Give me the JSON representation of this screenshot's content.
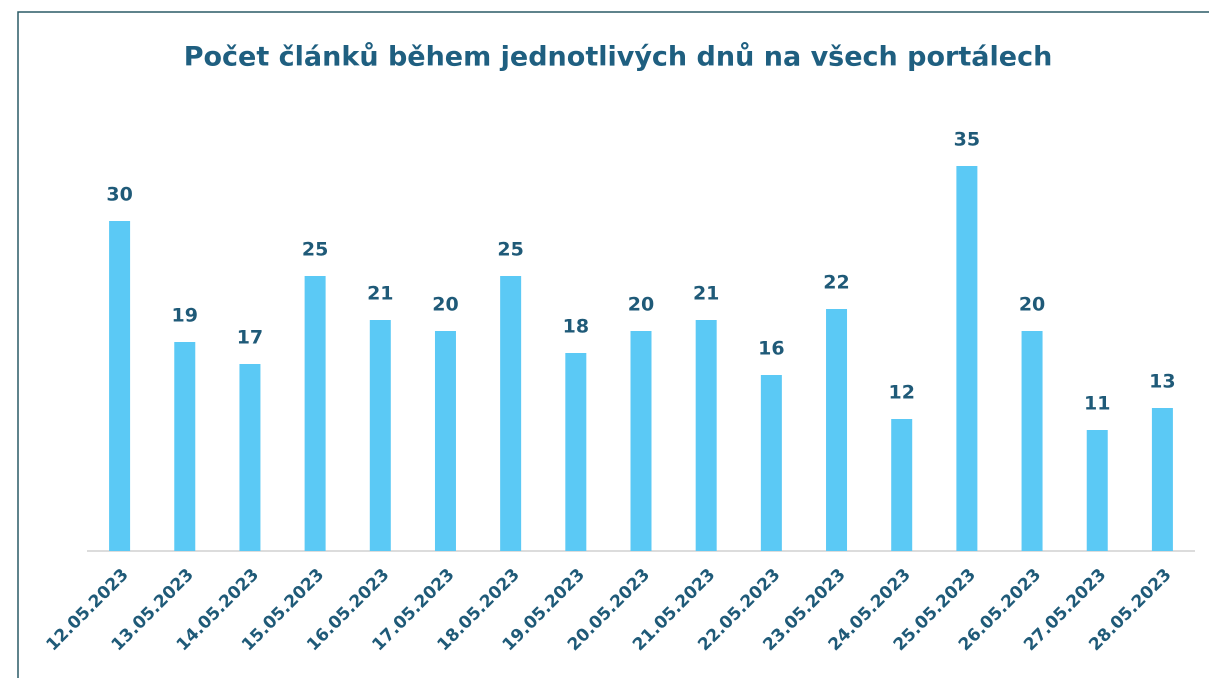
{
  "chart_data": {
    "type": "bar",
    "title": "Počet článků během jednotlivých dnů na všech portálech",
    "categories": [
      "12.05.2023",
      "13.05.2023",
      "14.05.2023",
      "15.05.2023",
      "16.05.2023",
      "17.05.2023",
      "18.05.2023",
      "19.05.2023",
      "20.05.2023",
      "21.05.2023",
      "22.05.2023",
      "23.05.2023",
      "24.05.2023",
      "25.05.2023",
      "26.05.2023",
      "27.05.2023",
      "28.05.2023"
    ],
    "values": [
      30,
      19,
      17,
      25,
      21,
      20,
      25,
      18,
      20,
      21,
      16,
      22,
      12,
      35,
      20,
      11,
      13
    ],
    "color": "#5bc9f5",
    "ylim": [
      0,
      35
    ]
  }
}
